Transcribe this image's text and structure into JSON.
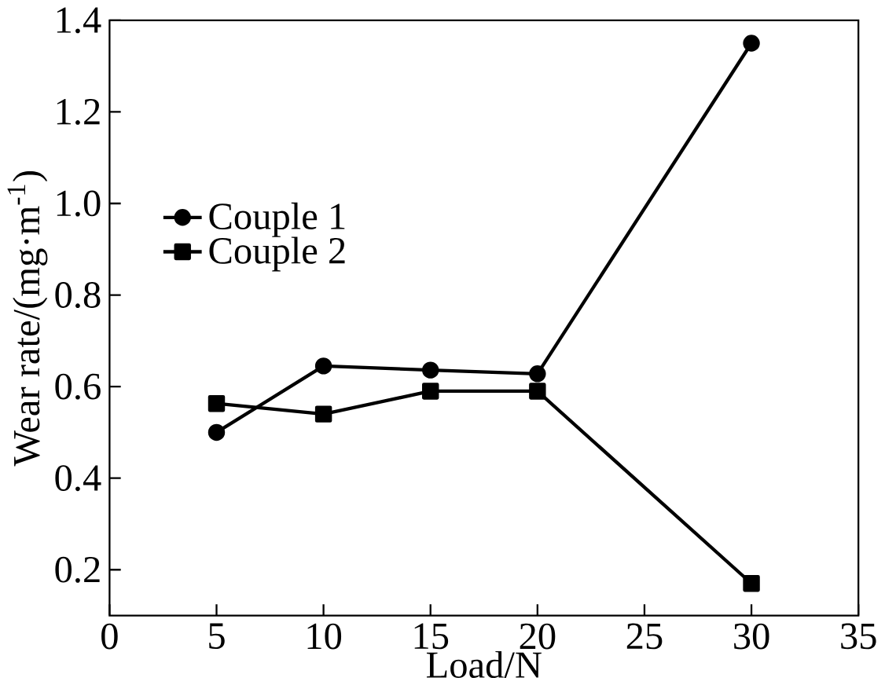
{
  "chart_data": {
    "type": "line",
    "xlabel": "Load/N",
    "ylabel": "Wear rate/(mg·m$^{-1}$)",
    "x": [
      5,
      10,
      15,
      20,
      30
    ],
    "series": [
      {
        "name": "Couple 1",
        "color": "#000000",
        "marker": "circle",
        "values": [
          0.5,
          0.645,
          0.636,
          0.628,
          1.35
        ]
      },
      {
        "name": "Couple 2",
        "color": "#000000",
        "marker": "square",
        "values": [
          0.563,
          0.54,
          0.59,
          0.59,
          0.17
        ]
      }
    ],
    "xlim": [
      0,
      35
    ],
    "xticks": [
      0,
      5,
      10,
      15,
      20,
      25,
      30,
      35
    ],
    "ylim": [
      0.1,
      1.4
    ],
    "yticks": [
      {
        "value": 0.2,
        "label": "0.2"
      },
      {
        "value": 0.4,
        "label": "0.4"
      },
      {
        "value": 0.6,
        "label": "0.6"
      },
      {
        "value": 0.8,
        "label": "0.8"
      },
      {
        "value": 1.0,
        "label": "1.0"
      },
      {
        "value": 1.2,
        "label": "1.2"
      },
      {
        "value": 1.4,
        "label": "1.4"
      }
    ],
    "grid": false,
    "legend": "left",
    "line_style": "solid"
  }
}
